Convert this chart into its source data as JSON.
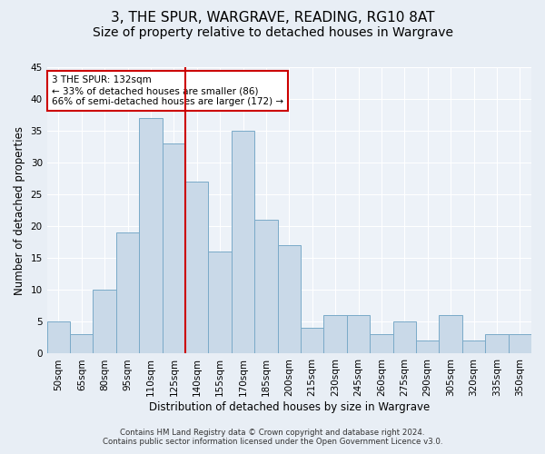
{
  "title": "3, THE SPUR, WARGRAVE, READING, RG10 8AT",
  "subtitle": "Size of property relative to detached houses in Wargrave",
  "xlabel": "Distribution of detached houses by size in Wargrave",
  "ylabel": "Number of detached properties",
  "bar_labels": [
    "50sqm",
    "65sqm",
    "80sqm",
    "95sqm",
    "110sqm",
    "125sqm",
    "140sqm",
    "155sqm",
    "170sqm",
    "185sqm",
    "200sqm",
    "215sqm",
    "230sqm",
    "245sqm",
    "260sqm",
    "275sqm",
    "290sqm",
    "305sqm",
    "320sqm",
    "335sqm",
    "350sqm"
  ],
  "bar_heights": [
    5,
    3,
    10,
    19,
    37,
    33,
    27,
    16,
    35,
    21,
    17,
    4,
    6,
    6,
    3,
    5,
    2,
    6,
    2,
    3,
    3
  ],
  "bar_color": "#c9d9e8",
  "bar_edge_color": "#7aaac8",
  "vline_x": 5.5,
  "vline_color": "#cc0000",
  "annotation_text": "3 THE SPUR: 132sqm\n← 33% of detached houses are smaller (86)\n66% of semi-detached houses are larger (172) →",
  "annotation_box_color": "#ffffff",
  "annotation_box_edge": "#cc0000",
  "ylim": [
    0,
    45
  ],
  "yticks": [
    0,
    5,
    10,
    15,
    20,
    25,
    30,
    35,
    40,
    45
  ],
  "footer_line1": "Contains HM Land Registry data © Crown copyright and database right 2024.",
  "footer_line2": "Contains public sector information licensed under the Open Government Licence v3.0.",
  "bg_color": "#e8eef5",
  "plot_bg_color": "#edf2f8",
  "title_fontsize": 11,
  "subtitle_fontsize": 10,
  "axis_label_fontsize": 8.5,
  "tick_fontsize": 7.5,
  "annotation_fontsize": 7.5
}
